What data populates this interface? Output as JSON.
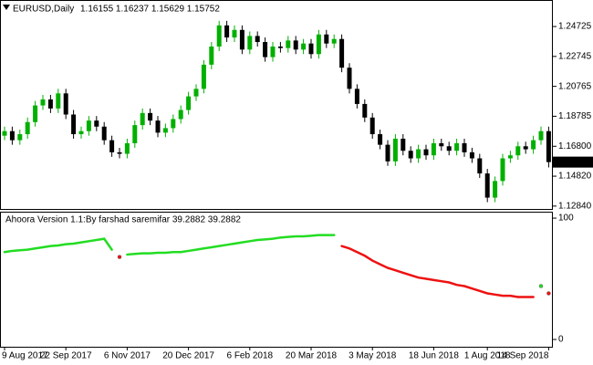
{
  "chart_data": [
    {
      "type": "candlestick",
      "title": "EURUSD,Daily",
      "ohlc_text": "1.16155 1.16237 1.15629 1.15752",
      "bull_color": "#00b000",
      "bear_color": "#000000",
      "ylim": [
        1.1265,
        1.2648
      ],
      "yticks": [
        1.24725,
        1.22745,
        1.20765,
        1.18785,
        {
          "value": 1.168,
          "label": "1.16800"
        },
        {
          "value": 1.1482,
          "label": "1.14820"
        },
        {
          "value": 1.1284,
          "label": "1.12840"
        }
      ],
      "last_price": 1.15752,
      "categories": [
        "9 Aug 2017",
        null,
        null,
        null,
        null,
        null,
        null,
        null,
        "22 Sep 2017",
        null,
        null,
        null,
        null,
        null,
        null,
        null,
        "6 Nov 2017",
        null,
        null,
        null,
        null,
        null,
        null,
        null,
        "20 Dec 2017",
        null,
        null,
        null,
        null,
        null,
        null,
        null,
        "6 Feb 2018",
        null,
        null,
        null,
        null,
        null,
        null,
        null,
        "20 Mar 2018",
        null,
        null,
        null,
        null,
        null,
        null,
        null,
        "3 May 2018",
        null,
        null,
        null,
        null,
        null,
        null,
        null,
        "18 Jun 2018",
        null,
        null,
        null,
        null,
        null,
        null,
        "1 Aug 2018",
        null,
        null,
        null,
        null,
        null,
        null,
        null,
        "14 Sep 2018"
      ],
      "open": [
        1.175,
        1.178,
        1.172,
        1.176,
        1.184,
        1.195,
        1.199,
        1.193,
        1.203,
        1.189,
        1.176,
        1.178,
        1.185,
        1.181,
        1.172,
        1.164,
        1.163,
        1.17,
        1.182,
        1.19,
        1.185,
        1.177,
        1.18,
        1.186,
        1.192,
        1.201,
        1.206,
        1.222,
        1.234,
        1.248,
        1.24,
        1.245,
        1.232,
        1.241,
        1.237,
        1.227,
        1.234,
        1.233,
        1.238,
        1.232,
        1.236,
        1.229,
        1.242,
        1.236,
        1.239,
        1.22,
        1.206,
        1.196,
        1.187,
        1.176,
        1.169,
        1.158,
        1.173,
        1.165,
        1.16,
        1.166,
        1.162,
        1.17,
        1.168,
        1.165,
        1.17,
        1.164,
        1.16,
        1.15,
        1.134,
        1.145,
        1.16,
        1.162,
        1.168,
        1.166,
        1.172,
        1.178
      ],
      "high": [
        1.181,
        1.181,
        1.179,
        1.187,
        1.198,
        1.202,
        1.202,
        1.206,
        1.206,
        1.192,
        1.181,
        1.188,
        1.188,
        1.184,
        1.175,
        1.167,
        1.173,
        1.185,
        1.193,
        1.193,
        1.188,
        1.183,
        1.189,
        1.195,
        1.204,
        1.209,
        1.225,
        1.237,
        1.251,
        1.251,
        1.248,
        1.248,
        1.244,
        1.244,
        1.24,
        1.237,
        1.237,
        1.241,
        1.241,
        1.239,
        1.239,
        1.245,
        1.245,
        1.242,
        1.242,
        1.223,
        1.209,
        1.199,
        1.19,
        1.179,
        1.172,
        1.176,
        1.176,
        1.168,
        1.169,
        1.169,
        1.173,
        1.173,
        1.171,
        1.173,
        1.173,
        1.167,
        1.163,
        1.153,
        1.148,
        1.163,
        1.165,
        1.171,
        1.171,
        1.175,
        1.181,
        1.181
      ],
      "low": [
        1.172,
        1.169,
        1.169,
        1.173,
        1.181,
        1.192,
        1.19,
        1.19,
        1.186,
        1.173,
        1.173,
        1.175,
        1.178,
        1.169,
        1.161,
        1.16,
        1.16,
        1.167,
        1.179,
        1.182,
        1.174,
        1.174,
        1.177,
        1.183,
        1.189,
        1.198,
        1.203,
        1.219,
        1.231,
        1.237,
        1.237,
        1.229,
        1.229,
        1.234,
        1.224,
        1.224,
        1.23,
        1.23,
        1.229,
        1.229,
        1.226,
        1.226,
        1.233,
        1.233,
        1.217,
        1.203,
        1.193,
        1.184,
        1.173,
        1.166,
        1.155,
        1.155,
        1.162,
        1.157,
        1.157,
        1.159,
        1.159,
        1.165,
        1.162,
        1.162,
        1.161,
        1.157,
        1.147,
        1.131,
        1.131,
        1.142,
        1.157,
        1.159,
        1.163,
        1.163,
        1.169,
        1.154
      ],
      "close": [
        1.178,
        1.172,
        1.176,
        1.184,
        1.195,
        1.199,
        1.193,
        1.203,
        1.189,
        1.176,
        1.178,
        1.185,
        1.181,
        1.172,
        1.164,
        1.163,
        1.17,
        1.182,
        1.19,
        1.185,
        1.177,
        1.18,
        1.186,
        1.192,
        1.201,
        1.206,
        1.222,
        1.234,
        1.248,
        1.24,
        1.245,
        1.232,
        1.241,
        1.237,
        1.227,
        1.234,
        1.233,
        1.238,
        1.232,
        1.236,
        1.229,
        1.242,
        1.236,
        1.239,
        1.22,
        1.206,
        1.196,
        1.187,
        1.176,
        1.169,
        1.158,
        1.173,
        1.165,
        1.16,
        1.166,
        1.162,
        1.17,
        1.168,
        1.165,
        1.17,
        1.164,
        1.16,
        1.15,
        1.134,
        1.145,
        1.16,
        1.162,
        1.168,
        1.166,
        1.172,
        1.178,
        1.15752
      ]
    },
    {
      "type": "line",
      "title": "Ahoora Version 1.1:By farshad saremifar  39.2882 39.2882",
      "ylim": [
        -6,
        105.3
      ],
      "yticks": [
        100,
        0
      ],
      "series": [
        {
          "color": "#22dd22",
          "values": [
            72,
            73,
            73.5,
            74,
            75,
            76,
            77,
            77.5,
            78.5,
            79,
            80,
            81,
            82,
            83,
            74,
            null,
            70,
            70.5,
            71,
            71,
            71.5,
            71.5,
            72,
            72,
            73,
            74,
            75,
            76,
            77,
            78,
            79,
            80,
            81,
            82,
            82.5,
            83,
            84,
            84.5,
            85,
            85,
            85.5,
            86,
            86,
            86,
            null,
            null,
            null,
            null,
            null,
            null,
            null,
            null,
            null,
            null,
            null,
            null,
            null,
            null,
            null,
            null,
            null,
            null,
            null,
            null,
            null,
            null,
            null,
            null,
            null,
            null,
            44,
            null
          ]
        },
        {
          "color": "#ee1111",
          "values": [
            null,
            null,
            null,
            null,
            null,
            null,
            null,
            null,
            null,
            null,
            null,
            null,
            null,
            null,
            null,
            68,
            null,
            null,
            null,
            null,
            null,
            null,
            null,
            null,
            null,
            null,
            null,
            null,
            null,
            null,
            null,
            null,
            null,
            null,
            null,
            null,
            null,
            null,
            null,
            null,
            null,
            null,
            null,
            null,
            77,
            75,
            72,
            69,
            65,
            62,
            59,
            57,
            55,
            53,
            51,
            50,
            49,
            48,
            47,
            45,
            44,
            42,
            40,
            38,
            37,
            36,
            36,
            35,
            35,
            35,
            null,
            38
          ]
        }
      ]
    }
  ]
}
